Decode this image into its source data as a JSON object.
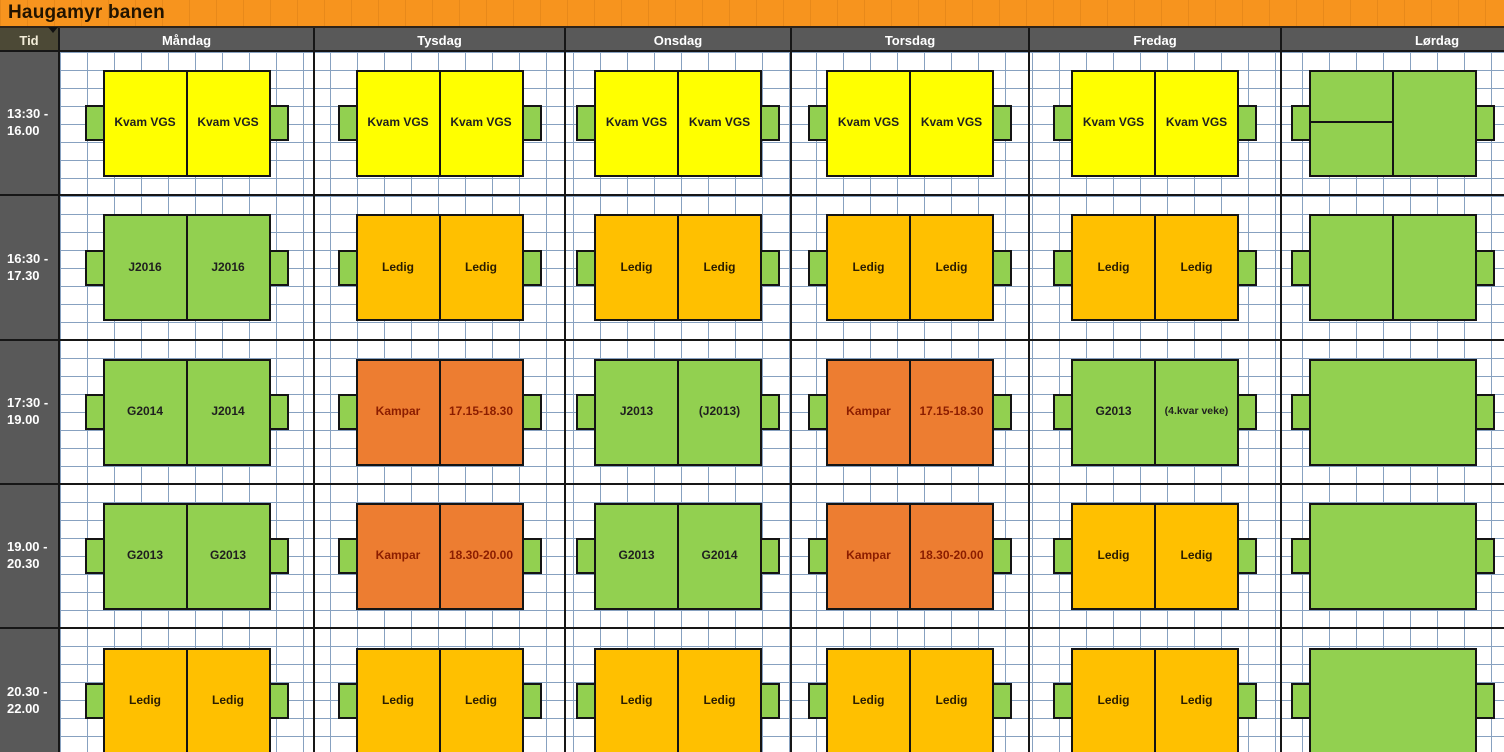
{
  "title": "Haugamyr banen",
  "colors": {
    "title_bar": "#F7941E",
    "header_bg": "#595959",
    "tid_header_bg": "#4C4936",
    "time_col_bg": "#595959",
    "grid_line": "#87A1C0",
    "yellow": "#FFFF00",
    "green": "#92D050",
    "amber": "#FFC000",
    "orange": "#ED7D31",
    "yellow_text": "#1F1F1F",
    "green_text": "#1F1F1F",
    "amber_text": "#2B1D00",
    "orange_text": "#8B1D00"
  },
  "header": {
    "tid_label": "Tid",
    "days": [
      "Måndag",
      "Tysdag",
      "Onsdag",
      "Torsdag",
      "Fredag",
      "Lørdag"
    ]
  },
  "rows": [
    {
      "time_start": "13:30 -",
      "time_end": "16.00",
      "days": [
        {
          "day": "Måndag",
          "variant": "pair",
          "blocks": [
            {
              "type": "yellow",
              "label": "Kvam VGS"
            },
            {
              "type": "yellow",
              "label": "Kvam VGS"
            }
          ]
        },
        {
          "day": "Tysdag",
          "variant": "pair",
          "blocks": [
            {
              "type": "yellow",
              "label": "Kvam VGS"
            },
            {
              "type": "yellow",
              "label": "Kvam VGS"
            }
          ]
        },
        {
          "day": "Onsdag",
          "variant": "pair",
          "blocks": [
            {
              "type": "yellow",
              "label": "Kvam VGS"
            },
            {
              "type": "yellow",
              "label": "Kvam VGS"
            }
          ]
        },
        {
          "day": "Torsdag",
          "variant": "pair",
          "blocks": [
            {
              "type": "yellow",
              "label": "Kvam VGS"
            },
            {
              "type": "yellow",
              "label": "Kvam VGS"
            }
          ]
        },
        {
          "day": "Fredag",
          "variant": "pair",
          "blocks": [
            {
              "type": "yellow",
              "label": "Kvam VGS"
            },
            {
              "type": "yellow",
              "label": "Kvam VGS"
            }
          ]
        },
        {
          "day": "Lørdag",
          "variant": "split-pair",
          "blocks": [
            {
              "type": "green",
              "label": ""
            },
            {
              "type": "green",
              "label": ""
            }
          ]
        }
      ]
    },
    {
      "time_start": "16:30 -",
      "time_end": "17.30",
      "days": [
        {
          "day": "Måndag",
          "variant": "pair",
          "blocks": [
            {
              "type": "green",
              "label": "J2016"
            },
            {
              "type": "green",
              "label": "J2016"
            }
          ]
        },
        {
          "day": "Tysdag",
          "variant": "pair",
          "blocks": [
            {
              "type": "amber",
              "label": "Ledig"
            },
            {
              "type": "amber",
              "label": "Ledig"
            }
          ]
        },
        {
          "day": "Onsdag",
          "variant": "pair",
          "blocks": [
            {
              "type": "amber",
              "label": "Ledig"
            },
            {
              "type": "amber",
              "label": "Ledig"
            }
          ]
        },
        {
          "day": "Torsdag",
          "variant": "pair",
          "blocks": [
            {
              "type": "amber",
              "label": "Ledig"
            },
            {
              "type": "amber",
              "label": "Ledig"
            }
          ]
        },
        {
          "day": "Fredag",
          "variant": "pair",
          "blocks": [
            {
              "type": "amber",
              "label": "Ledig"
            },
            {
              "type": "amber",
              "label": "Ledig"
            }
          ]
        },
        {
          "day": "Lørdag",
          "variant": "pair",
          "blocks": [
            {
              "type": "green",
              "label": ""
            },
            {
              "type": "green",
              "label": ""
            }
          ]
        }
      ]
    },
    {
      "time_start": "17:30 -",
      "time_end": "19.00",
      "days": [
        {
          "day": "Måndag",
          "variant": "pair",
          "blocks": [
            {
              "type": "green",
              "label": "G2014"
            },
            {
              "type": "green",
              "label": "J2014"
            }
          ]
        },
        {
          "day": "Tysdag",
          "variant": "pair",
          "blocks": [
            {
              "type": "orange",
              "label": "Kampar"
            },
            {
              "type": "orange",
              "label": "17.15-18.30"
            }
          ]
        },
        {
          "day": "Onsdag",
          "variant": "pair",
          "blocks": [
            {
              "type": "green",
              "label": "J2013"
            },
            {
              "type": "green",
              "label": "(J2013)"
            }
          ]
        },
        {
          "day": "Torsdag",
          "variant": "pair",
          "blocks": [
            {
              "type": "orange",
              "label": "Kampar"
            },
            {
              "type": "orange",
              "label": "17.15-18.30"
            }
          ]
        },
        {
          "day": "Fredag",
          "variant": "pair",
          "blocks": [
            {
              "type": "green",
              "label": "G2013"
            },
            {
              "type": "green",
              "label": "(4.kvar veke)"
            }
          ]
        },
        {
          "day": "Lørdag",
          "variant": "merged",
          "blocks": [
            {
              "type": "green",
              "label": ""
            }
          ]
        }
      ]
    },
    {
      "time_start": "19.00 -",
      "time_end": "20.30",
      "days": [
        {
          "day": "Måndag",
          "variant": "pair",
          "blocks": [
            {
              "type": "green",
              "label": "G2013"
            },
            {
              "type": "green",
              "label": "G2013"
            }
          ]
        },
        {
          "day": "Tysdag",
          "variant": "pair",
          "blocks": [
            {
              "type": "orange",
              "label": "Kampar"
            },
            {
              "type": "orange",
              "label": "18.30-20.00"
            }
          ]
        },
        {
          "day": "Onsdag",
          "variant": "pair",
          "blocks": [
            {
              "type": "green",
              "label": "G2013"
            },
            {
              "type": "green",
              "label": "G2014"
            }
          ]
        },
        {
          "day": "Torsdag",
          "variant": "pair",
          "blocks": [
            {
              "type": "orange",
              "label": "Kampar"
            },
            {
              "type": "orange",
              "label": "18.30-20.00"
            }
          ]
        },
        {
          "day": "Fredag",
          "variant": "pair",
          "blocks": [
            {
              "type": "amber",
              "label": "Ledig"
            },
            {
              "type": "amber",
              "label": "Ledig"
            }
          ]
        },
        {
          "day": "Lørdag",
          "variant": "merged",
          "blocks": [
            {
              "type": "green",
              "label": ""
            }
          ]
        }
      ]
    },
    {
      "time_start": "20.30 -",
      "time_end": "22.00",
      "days": [
        {
          "day": "Måndag",
          "variant": "pair",
          "blocks": [
            {
              "type": "amber",
              "label": "Ledig"
            },
            {
              "type": "amber",
              "label": "Ledig"
            }
          ]
        },
        {
          "day": "Tysdag",
          "variant": "pair",
          "blocks": [
            {
              "type": "amber",
              "label": "Ledig"
            },
            {
              "type": "amber",
              "label": "Ledig"
            }
          ]
        },
        {
          "day": "Onsdag",
          "variant": "pair",
          "blocks": [
            {
              "type": "amber",
              "label": "Ledig"
            },
            {
              "type": "amber",
              "label": "Ledig"
            }
          ]
        },
        {
          "day": "Torsdag",
          "variant": "pair",
          "blocks": [
            {
              "type": "amber",
              "label": "Ledig"
            },
            {
              "type": "amber",
              "label": "Ledig"
            }
          ]
        },
        {
          "day": "Fredag",
          "variant": "pair",
          "blocks": [
            {
              "type": "amber",
              "label": "Ledig"
            },
            {
              "type": "amber",
              "label": "Ledig"
            }
          ]
        },
        {
          "day": "Lørdag",
          "variant": "merged",
          "blocks": [
            {
              "type": "green",
              "label": ""
            }
          ]
        }
      ]
    }
  ]
}
